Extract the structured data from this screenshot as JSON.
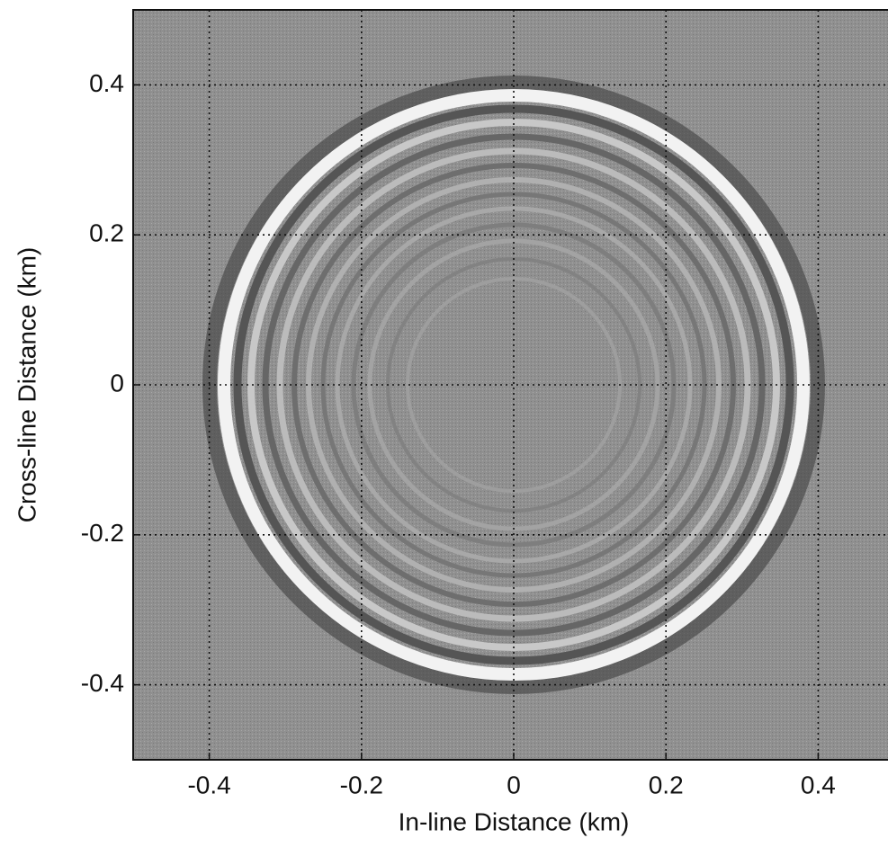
{
  "chart_data": {
    "type": "image",
    "x_label": "In-line Distance (km)",
    "y_label": "Cross-line Distance (km)",
    "xlim": [
      -0.5,
      0.5
    ],
    "ylim": [
      -0.5,
      0.5
    ],
    "xticks": [
      -0.4,
      -0.2,
      0,
      0.2,
      0.4
    ],
    "yticks": [
      -0.4,
      -0.2,
      0,
      0.2,
      0.4
    ],
    "grid": true
  }
}
